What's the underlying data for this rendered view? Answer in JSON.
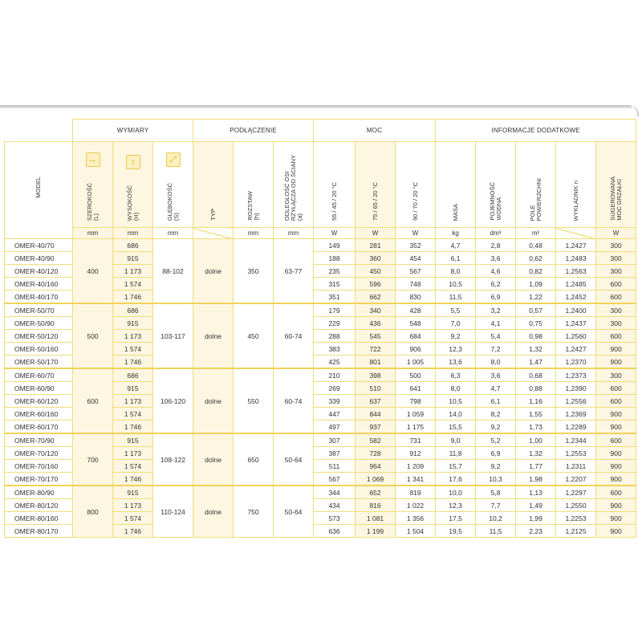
{
  "header": {
    "groups": [
      "WYMIARY",
      "PODŁĄCZENIE",
      "MOC",
      "INFORMACJE DODATKOWE"
    ],
    "model": "MODEL",
    "columns": [
      {
        "label": "SZEROKOŚĆ\n(L)",
        "unit": "mm",
        "icon": "horizontal-arrow-icon"
      },
      {
        "label": "WYSOKOŚĆ\n(H)",
        "unit": "mm",
        "icon": "vertical-arrow-icon"
      },
      {
        "label": "GŁĘBOKOŚĆ\n(S)",
        "unit": "mm",
        "icon": "diagonal-arrow-icon"
      },
      {
        "label": "TYP",
        "unit": ""
      },
      {
        "label": "ROZSTAW\n(h)",
        "unit": "mm"
      },
      {
        "label": "ODLEGŁOŚĆ OSI\nRZYŁĄCZA OD ŚCIANY\n(a)",
        "unit": "mm"
      },
      {
        "label": "55 / 45 / 20 °C",
        "unit": "W"
      },
      {
        "label": "75 / 65 / 20 °C",
        "unit": "W"
      },
      {
        "label": "90 / 70 / 20 °C",
        "unit": "W"
      },
      {
        "label": "MASA",
        "unit": "kg"
      },
      {
        "label": "POJEMNOŚĆ\nWODNA",
        "unit": "dm³"
      },
      {
        "label": "POLE\nPOWIERZCHNI",
        "unit": "m²"
      },
      {
        "label": "WYKŁADNIK n",
        "unit": ""
      },
      {
        "label": "SUGEROWANA\nMOC GRZAŁKI",
        "unit": "W"
      }
    ]
  },
  "colors": {
    "border": "#f1dd78",
    "shade": "#fdf6e1",
    "icon": "#e2b521"
  },
  "groups": [
    {
      "width": "400",
      "depth": "88-102",
      "type": "dolne",
      "spacing": "350",
      "offset": "63-77",
      "rows": [
        [
          "OMER-40/70",
          "686",
          "149",
          "281",
          "352",
          "4,7",
          "2,8",
          "0,48",
          "1,2427",
          "300"
        ],
        [
          "OMER-40/90",
          "915",
          "188",
          "360",
          "454",
          "6,1",
          "3,6",
          "0,62",
          "1,2483",
          "300"
        ],
        [
          "OMER-40/120",
          "1 173",
          "235",
          "450",
          "567",
          "8,0",
          "4,6",
          "0,82",
          "1,2563",
          "300"
        ],
        [
          "OMER-40/160",
          "1 574",
          "315",
          "596",
          "748",
          "10,5",
          "6,2",
          "1,09",
          "1,2485",
          "600"
        ],
        [
          "OMER-40/170",
          "1 746",
          "351",
          "662",
          "830",
          "11,5",
          "6,9",
          "1,22",
          "1,2452",
          "600"
        ]
      ]
    },
    {
      "width": "500",
      "depth": "103-117",
      "type": "dolne",
      "spacing": "450",
      "offset": "60-74",
      "rows": [
        [
          "OMER-50/70",
          "686",
          "179",
          "340",
          "428",
          "5,5",
          "3,2",
          "0,57",
          "1,2400",
          "300"
        ],
        [
          "OMER-50/90",
          "915",
          "229",
          "436",
          "548",
          "7,0",
          "4,1",
          "0,75",
          "1,2437",
          "300"
        ],
        [
          "OMER-50/120",
          "1 173",
          "288",
          "545",
          "684",
          "9,2",
          "5,4",
          "0,98",
          "1,2560",
          "600"
        ],
        [
          "OMER-50/160",
          "1 574",
          "383",
          "722",
          "906",
          "12,3",
          "7,2",
          "1,32",
          "1,2427",
          "900"
        ],
        [
          "OMER-50/170",
          "1 746",
          "425",
          "801",
          "1 005",
          "13,6",
          "8,0",
          "1,47",
          "1,2370",
          "900"
        ]
      ]
    },
    {
      "width": "600",
      "depth": "106-120",
      "type": "dolne",
      "spacing": "550",
      "offset": "60-74",
      "rows": [
        [
          "OMER-60/70",
          "686",
          "210",
          "398",
          "500",
          "6,3",
          "3,6",
          "0,68",
          "1,2373",
          "300"
        ],
        [
          "OMER-60/90",
          "915",
          "269",
          "510",
          "641",
          "8,0",
          "4,7",
          "0,88",
          "1,2390",
          "600"
        ],
        [
          "OMER-60/120",
          "1 173",
          "339",
          "637",
          "798",
          "10,5",
          "6,1",
          "1,16",
          "1,2556",
          "600"
        ],
        [
          "OMER-60/160",
          "1 574",
          "447",
          "844",
          "1 059",
          "14,0",
          "8,2",
          "1,55",
          "1,2369",
          "900"
        ],
        [
          "OMER-60/170",
          "1 746",
          "497",
          "937",
          "1 175",
          "15,5",
          "9,2",
          "1,73",
          "1,2289",
          "900"
        ]
      ]
    },
    {
      "width": "700",
      "depth": "108-122",
      "type": "dolne",
      "spacing": "650",
      "offset": "50-64",
      "rows": [
        [
          "OMER-70/90",
          "915",
          "307",
          "582",
          "731",
          "9,0",
          "5,2",
          "1,00",
          "1,2344",
          "600"
        ],
        [
          "OMER-70/120",
          "1 173",
          "387",
          "728",
          "912",
          "11,8",
          "6,9",
          "1,32",
          "1,2553",
          "900"
        ],
        [
          "OMER-70/160",
          "1 574",
          "511",
          "964",
          "1 209",
          "15,7",
          "9,2",
          "1,77",
          "1,2311",
          "900"
        ],
        [
          "OMER-70/170",
          "1 746",
          "567",
          "1 069",
          "1 341",
          "17,6",
          "10,3",
          "1,98",
          "1,2207",
          "900"
        ]
      ]
    },
    {
      "width": "800",
      "depth": "110-124",
      "type": "dolne",
      "spacing": "750",
      "offset": "50-64",
      "rows": [
        [
          "OMER-80/90",
          "915",
          "344",
          "652",
          "819",
          "10,0",
          "5,8",
          "1,13",
          "1,2297",
          "600"
        ],
        [
          "OMER-80/120",
          "1 173",
          "434",
          "816",
          "1 022",
          "12,3",
          "7,7",
          "1,49",
          "1,2550",
          "900"
        ],
        [
          "OMER-80/160",
          "1 574",
          "573",
          "1 081",
          "1 356",
          "17,5",
          "10,2",
          "1,99",
          "1,2253",
          "900"
        ],
        [
          "OMER-80/170",
          "1 746",
          "636",
          "1 199",
          "1 504",
          "19,5",
          "11,5",
          "2,23",
          "1,2125",
          "900"
        ]
      ]
    }
  ]
}
